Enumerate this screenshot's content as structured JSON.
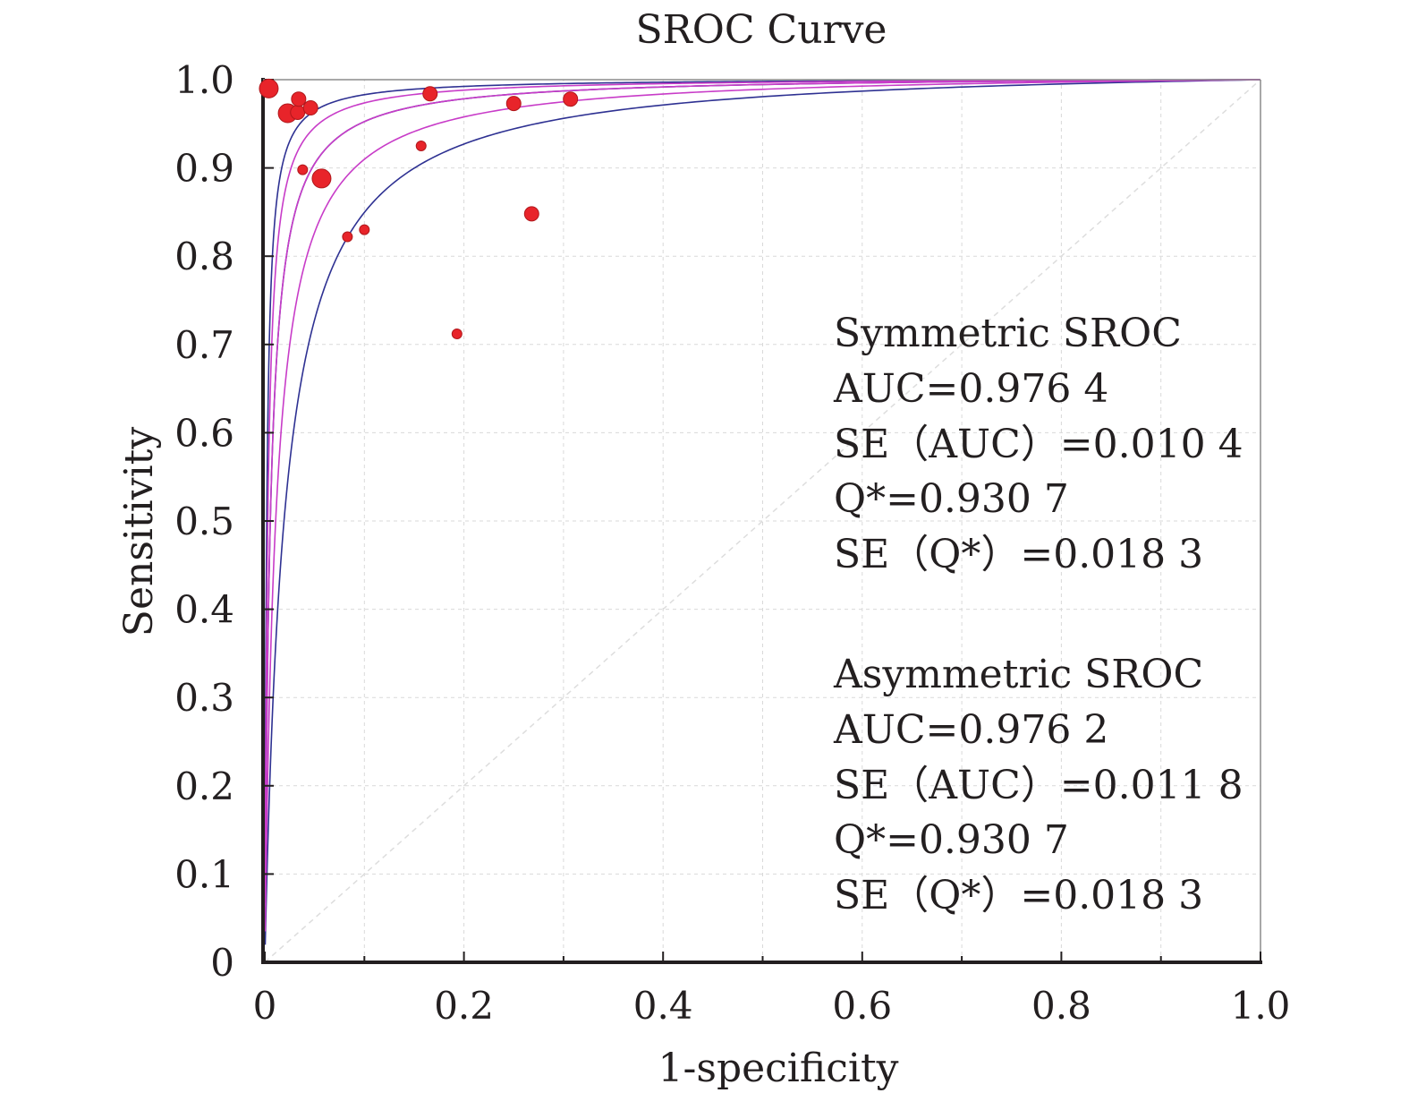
{
  "chart_data": {
    "type": "scatter",
    "title": "SROC Curve",
    "xlabel": "1-specificity",
    "ylabel": "Sensitivity",
    "xlim": [
      0,
      1.0
    ],
    "ylim": [
      0,
      1.0
    ],
    "x_ticks": [
      "0",
      "0.2",
      "0.4",
      "0.6",
      "0.8",
      "1.0"
    ],
    "y_ticks": [
      "0",
      "0.1",
      "0.2",
      "0.3",
      "0.4",
      "0.5",
      "0.6",
      "0.7",
      "0.8",
      "0.9",
      "1.0"
    ],
    "grid": true,
    "points": [
      {
        "x": 0.004,
        "y": 0.99,
        "size": "large"
      },
      {
        "x": 0.023,
        "y": 0.962,
        "size": "large"
      },
      {
        "x": 0.033,
        "y": 0.963,
        "size": "medium"
      },
      {
        "x": 0.034,
        "y": 0.978,
        "size": "medium"
      },
      {
        "x": 0.046,
        "y": 0.968,
        "size": "medium"
      },
      {
        "x": 0.038,
        "y": 0.898,
        "size": "small"
      },
      {
        "x": 0.057,
        "y": 0.888,
        "size": "large"
      },
      {
        "x": 0.083,
        "y": 0.822,
        "size": "small"
      },
      {
        "x": 0.1,
        "y": 0.83,
        "size": "small"
      },
      {
        "x": 0.157,
        "y": 0.925,
        "size": "small"
      },
      {
        "x": 0.166,
        "y": 0.984,
        "size": "medium"
      },
      {
        "x": 0.193,
        "y": 0.712,
        "size": "small"
      },
      {
        "x": 0.25,
        "y": 0.973,
        "size": "medium"
      },
      {
        "x": 0.268,
        "y": 0.848,
        "size": "medium"
      },
      {
        "x": 0.307,
        "y": 0.978,
        "size": "medium"
      }
    ],
    "curves": [
      {
        "role": "symmetric-sroc",
        "q_star": 0.9307,
        "color": "#2e3192"
      },
      {
        "role": "symmetric-ci-upper",
        "q_star": 0.958,
        "color": "#2e3192"
      },
      {
        "role": "symmetric-ci-lower",
        "q_star": 0.877,
        "color": "#2e3192"
      },
      {
        "role": "asymmetric-sroc",
        "q_star": 0.9307,
        "color": "#c83cc8"
      },
      {
        "role": "asymmetric-ci-upper",
        "q_star": 0.948,
        "color": "#c83cc8"
      },
      {
        "role": "asymmetric-ci-lower",
        "q_star": 0.905,
        "color": "#c83cc8"
      }
    ],
    "colors": {
      "point_fill": "#e8242a",
      "point_stroke": "#b0181c",
      "axis": "#231f20",
      "grid": "#d9d9d9"
    }
  },
  "symmetric": {
    "heading": "Symmetric SROC",
    "auc": "AUC=0.976 4",
    "se_auc": "SE（AUC）=0.010 4",
    "q_star": "Q*=0.930 7",
    "se_q_star": "SE（Q*）=0.018 3"
  },
  "asymmetric": {
    "heading": "Asymmetric SROC",
    "auc": "AUC=0.976 2",
    "se_auc": "SE（AUC）=0.011 8",
    "q_star": "Q*=0.930 7",
    "se_q_star": "SE（Q*）=0.018 3"
  }
}
